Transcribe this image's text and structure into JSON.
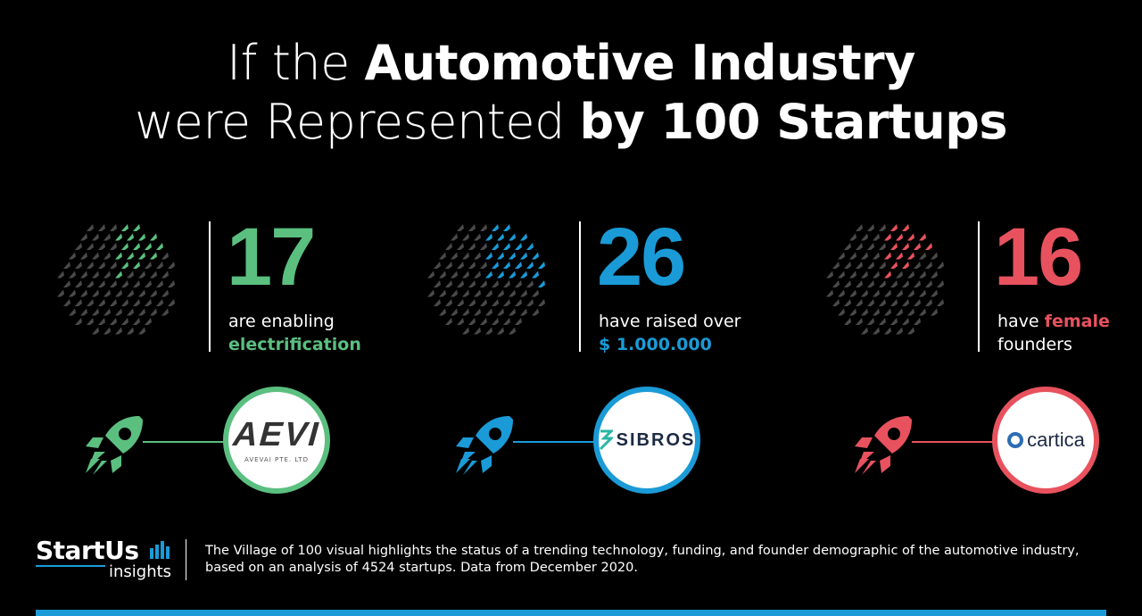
{
  "title": {
    "pre1": "If the ",
    "bold1": "Automotive Industry",
    "pre2": "were Represented ",
    "bold2": "by 100 Startups"
  },
  "panels": [
    {
      "id": "electrification",
      "value": 17,
      "number": "17",
      "text_line1": "are enabling",
      "text_line2_bold": "electrification",
      "color": "#5bbf80",
      "company": "AVEVAI PTE. LTD",
      "logo_text": "AEVI"
    },
    {
      "id": "funding",
      "value": 26,
      "number": "26",
      "text_line1": "have raised over",
      "text_line2_bold": "$ 1.000.000",
      "color": "#1a9bd7",
      "company": "SIBROS"
    },
    {
      "id": "female-founders",
      "value": 16,
      "number": "16",
      "text_line1_pre": "have ",
      "text_line1_bold": "female",
      "text_line2": "founders",
      "color": "#e8525e",
      "company": "cartica"
    }
  ],
  "dot_grid_total": 100,
  "grey_color": "#4a4a4a",
  "footer": {
    "brand": "StartUs",
    "brand_sub": "insights",
    "description": "The Village of 100 visual highlights the status of a trending technology, funding, and founder demographic of the automotive industry, based on an analysis of 4524 startups. Data from December 2020."
  },
  "accent_bar_color": "#1a9bd7",
  "icons": [
    "rocket-icon",
    "bar-chart-icon"
  ]
}
